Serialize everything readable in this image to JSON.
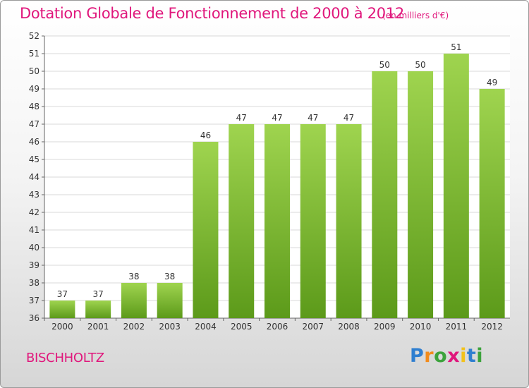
{
  "title": "Dotation Globale de Fonctionnement de 2000 à 2012",
  "subtitle": "(en milliers d'€)",
  "commune": "BISCHHOLTZ",
  "logo": {
    "text": "Proxiti",
    "letters": [
      {
        "ch": "P",
        "color": "#2f7fd0"
      },
      {
        "ch": "r",
        "color": "#f28c1c"
      },
      {
        "ch": "o",
        "color": "#3ca33c"
      },
      {
        "ch": "x",
        "color": "#e0177c"
      },
      {
        "ch": "i",
        "color": "#f2c21c"
      },
      {
        "ch": "t",
        "color": "#2f7fd0"
      },
      {
        "ch": "i",
        "color": "#3ca33c"
      }
    ]
  },
  "colors": {
    "bar_top": "#9fd44f",
    "bar_bottom": "#5c9a1a",
    "title": "#e0177c",
    "grid": "#d8d8d8"
  },
  "chart_data": {
    "type": "bar",
    "categories": [
      "2000",
      "2001",
      "2002",
      "2003",
      "2004",
      "2005",
      "2006",
      "2007",
      "2008",
      "2009",
      "2010",
      "2011",
      "2012"
    ],
    "values": [
      37,
      37,
      38,
      38,
      46,
      47,
      47,
      47,
      47,
      50,
      50,
      51,
      49
    ],
    "ylim": [
      36,
      52
    ],
    "yticks": [
      36,
      37,
      38,
      39,
      40,
      41,
      42,
      43,
      44,
      45,
      46,
      47,
      48,
      49,
      50,
      51,
      52
    ],
    "grid": true
  }
}
